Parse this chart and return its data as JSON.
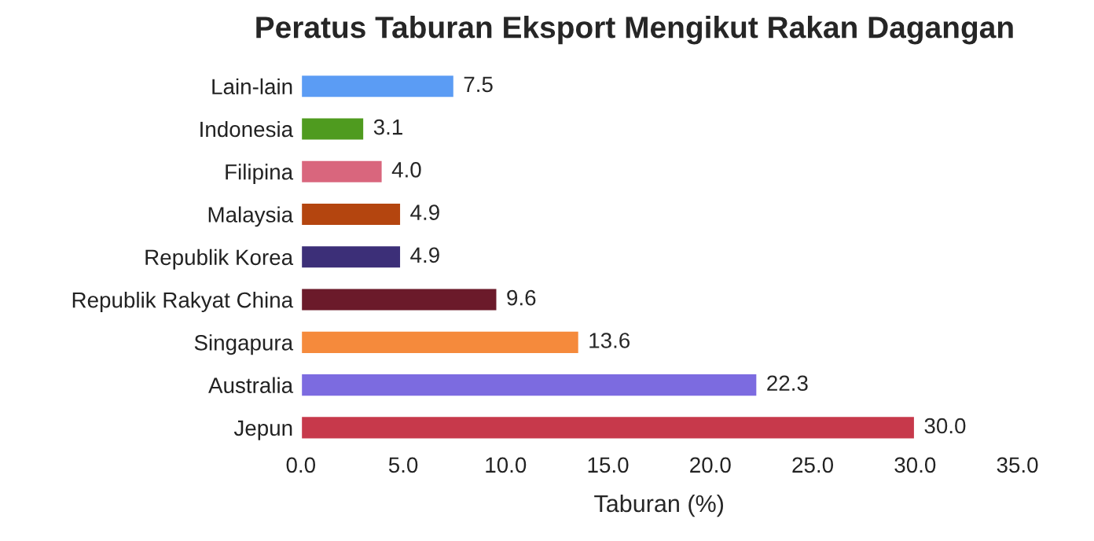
{
  "chart_data": {
    "type": "bar",
    "orientation": "horizontal",
    "title": "Peratus Taburan Eksport Mengikut Rakan Dagangan",
    "xlabel": "Taburan (%)",
    "categories": [
      "Lain-lain",
      "Indonesia",
      "Filipina",
      "Malaysia",
      "Republik Korea",
      "Republik Rakyat China",
      "Singapura",
      "Australia",
      "Jepun"
    ],
    "values": [
      7.5,
      3.1,
      4.0,
      4.9,
      4.9,
      9.6,
      13.6,
      22.3,
      30.0
    ],
    "value_labels": [
      "7.5",
      "3.1",
      "4.0",
      "4.9",
      "4.9",
      "9.6",
      "13.6",
      "22.3",
      "30.0"
    ],
    "colors": [
      "#5b9cf4",
      "#4f9b1f",
      "#d9667d",
      "#b4450f",
      "#3c2f78",
      "#6b1a2a",
      "#f58a3c",
      "#7c6be0",
      "#c7394b"
    ],
    "xlim": [
      0,
      35
    ],
    "xticks": [
      {
        "value": 0,
        "label": "0.0"
      },
      {
        "value": 5,
        "label": "5.0"
      },
      {
        "value": 10,
        "label": "10.0"
      },
      {
        "value": 15,
        "label": "15.0"
      },
      {
        "value": 20,
        "label": "20.0"
      },
      {
        "value": 25,
        "label": "25.0"
      },
      {
        "value": 30,
        "label": "30.0"
      },
      {
        "value": 35,
        "label": "35.0"
      }
    ],
    "grid": false
  }
}
